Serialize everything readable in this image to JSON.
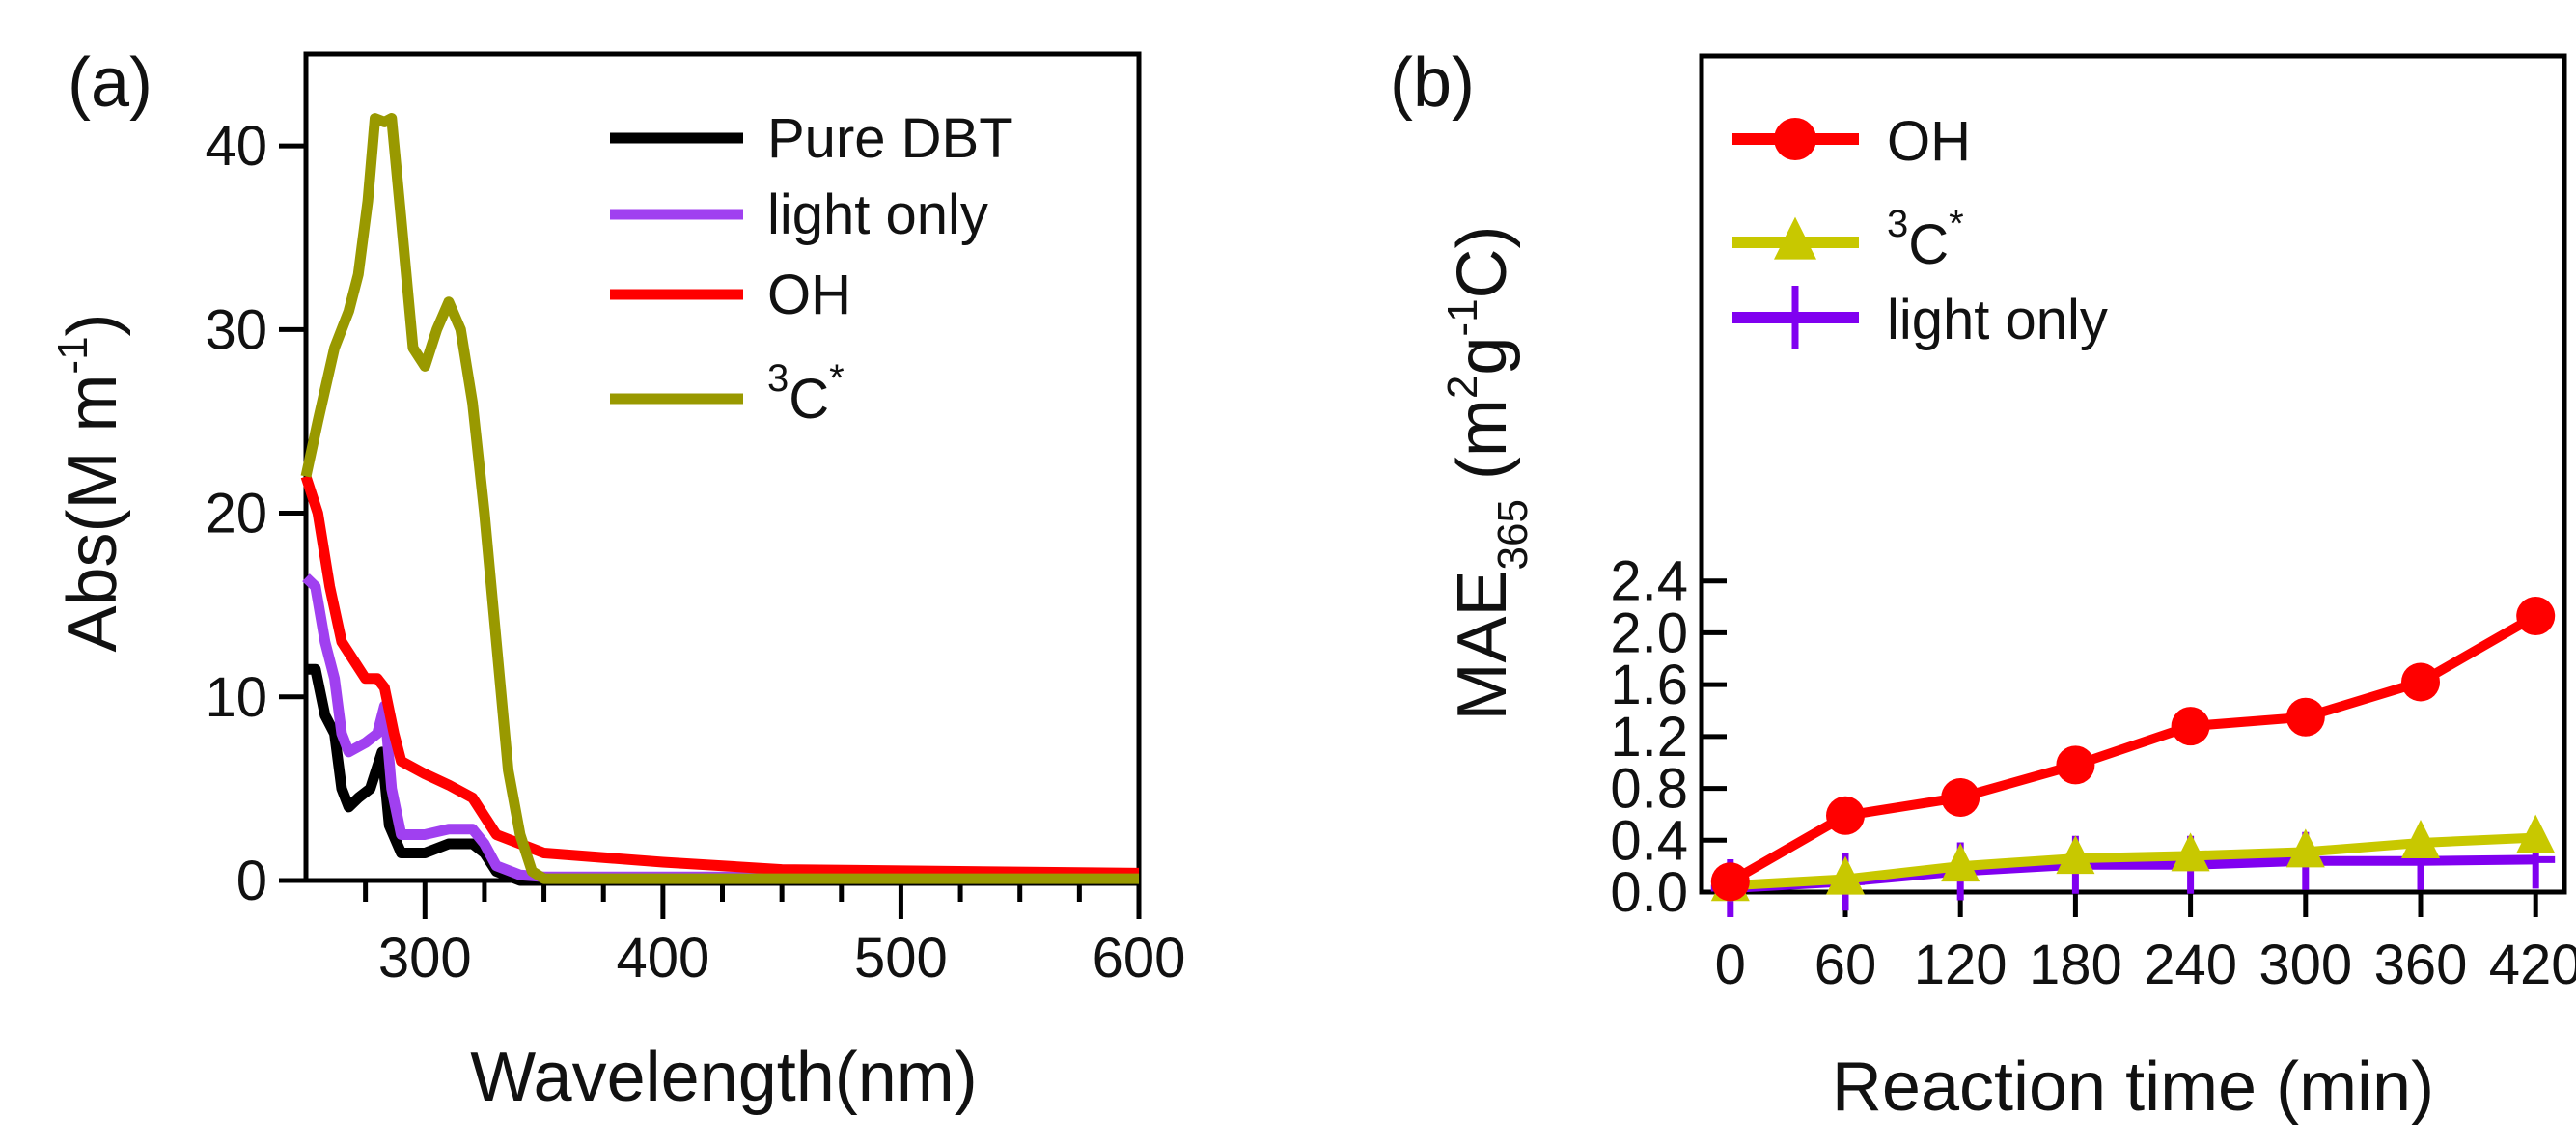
{
  "chart_data": [
    {
      "type": "line",
      "panel_label": "(a)",
      "xlabel": "Wavelength(nm)",
      "ylabel": "Abs(M m",
      "ylabel_sup": "-1",
      "ylabel_close": ")",
      "xlim": [
        250,
        600
      ],
      "ylim": [
        0,
        45
      ],
      "xticks": [
        300,
        400,
        500,
        600
      ],
      "yticks": [
        0,
        10,
        20,
        30,
        40
      ],
      "legend_position": "top-right",
      "series": [
        {
          "name": "Pure DBT",
          "label_sup": "",
          "label_text": "Pure DBT",
          "color": "#000000",
          "x": [
            250,
            254,
            258,
            262,
            265,
            268,
            272,
            277,
            282,
            285,
            290,
            300,
            310,
            320,
            325,
            330,
            340,
            600
          ],
          "y": [
            11.5,
            11.5,
            9,
            8,
            5,
            4,
            4.5,
            5,
            7,
            3,
            1.5,
            1.5,
            2,
            2,
            1.5,
            0.5,
            0,
            0
          ]
        },
        {
          "name": "light only",
          "label_sup": "",
          "label_text": "light only",
          "color": "#a040f0",
          "x": [
            250,
            254,
            258,
            262,
            265,
            268,
            275,
            280,
            283,
            286,
            290,
            300,
            310,
            320,
            325,
            330,
            340,
            350,
            600
          ],
          "y": [
            16.5,
            16,
            13,
            11,
            8,
            7,
            7.5,
            8,
            9.5,
            5,
            2.5,
            2.5,
            2.8,
            2.8,
            2,
            0.8,
            0.3,
            0.2,
            0.2
          ]
        },
        {
          "name": "OH",
          "label_sup": "",
          "label_text": " OH",
          "color": "#ff0000",
          "x": [
            250,
            255,
            260,
            265,
            270,
            275,
            280,
            283,
            287,
            290,
            300,
            310,
            320,
            330,
            340,
            350,
            400,
            450,
            600
          ],
          "y": [
            22,
            20,
            16,
            13,
            12,
            11,
            11,
            10.5,
            8,
            6.5,
            5.8,
            5.2,
            4.5,
            2.5,
            2,
            1.5,
            1,
            0.6,
            0.4
          ]
        },
        {
          "name": "3C*",
          "label_sup": "3",
          "label_text": "C",
          "label_sup2": "*",
          "color": "#999900",
          "x": [
            250,
            255,
            262,
            268,
            272,
            276,
            279,
            283,
            286,
            290,
            295,
            300,
            305,
            310,
            315,
            320,
            325,
            330,
            335,
            340,
            345,
            350,
            600
          ],
          "y": [
            22,
            25,
            29,
            31,
            33,
            37,
            41.5,
            41.3,
            41.5,
            36,
            29,
            28,
            30,
            31.5,
            30,
            26,
            20,
            13,
            6,
            2.5,
            0.5,
            0.1,
            0.1
          ]
        }
      ]
    },
    {
      "type": "line",
      "panel_label": "(b)",
      "xlabel": "Reaction time (min)",
      "ylabel": "MAE",
      "ylabel_sub": "365",
      "ylabel_rest1": " (m",
      "ylabel_sup1": "2",
      "ylabel_rest2": "g",
      "ylabel_sup2": "-1",
      "ylabel_rest3": "C)",
      "xlim": [
        -15,
        435
      ],
      "ylim": [
        0,
        2.5
      ],
      "xticks": [
        0,
        60,
        120,
        180,
        240,
        300,
        360,
        420
      ],
      "ytick_labels": [
        "0.0",
        "0.4",
        "0.8",
        "1.2",
        "1.6",
        "2.0",
        "2.4"
      ],
      "yticks": [
        0,
        0.4,
        0.8,
        1.2,
        1.6,
        2.0,
        2.4
      ],
      "legend_position": "top-left",
      "x": [
        0,
        60,
        120,
        180,
        240,
        300,
        360,
        420
      ],
      "series": [
        {
          "name": "OH",
          "label_text": "OH",
          "label_sup": "",
          "label_sup2": "",
          "marker": "circle",
          "color": "#ff0000",
          "values": [
            0.08,
            0.59,
            0.73,
            0.98,
            1.28,
            1.35,
            1.62,
            2.13
          ]
        },
        {
          "name": "3C*",
          "label_text": "C",
          "label_sup": "3",
          "label_sup2": "*",
          "marker": "triangle",
          "color": "#c8c800",
          "values": [
            0.05,
            0.1,
            0.2,
            0.26,
            0.28,
            0.31,
            0.38,
            0.42
          ]
        },
        {
          "name": "light only",
          "label_text": "light only",
          "label_sup": "",
          "label_sup2": "",
          "marker": "plus",
          "color": "#8000f0",
          "values": [
            0.03,
            0.08,
            0.16,
            0.21,
            0.21,
            0.24,
            0.24,
            0.25
          ]
        }
      ]
    }
  ]
}
